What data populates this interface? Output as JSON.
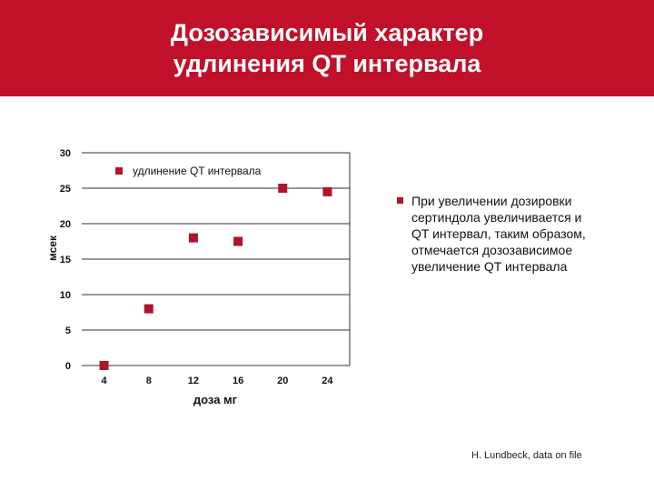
{
  "header": {
    "title": "Дозозависимый характер\nудлинения QT интервала",
    "background": "#c0102a"
  },
  "chart_data": {
    "type": "scatter",
    "title": "",
    "xlabel": "доза мг",
    "ylabel": "мсек",
    "x": [
      4,
      8,
      12,
      16,
      20,
      24
    ],
    "series": [
      {
        "name": "удлинение QT интервала",
        "values": [
          0,
          8,
          18,
          17.5,
          25,
          24.5
        ]
      }
    ],
    "x_ticks": [
      "4",
      "8",
      "12",
      "16",
      "20",
      "24"
    ],
    "y_ticks": [
      0,
      5,
      10,
      15,
      20,
      25,
      30
    ],
    "ylim": [
      0,
      30
    ],
    "grid": true,
    "legend": "top",
    "marker_color": "#b0142a"
  },
  "note": {
    "text": "При увеличении дозировки\nсертиндола увеличивается и\nQT интервал, таким образом,\nотмечается дозозависимое\nувеличение QT интервала"
  },
  "source": "H. Lundbeck, data on file"
}
